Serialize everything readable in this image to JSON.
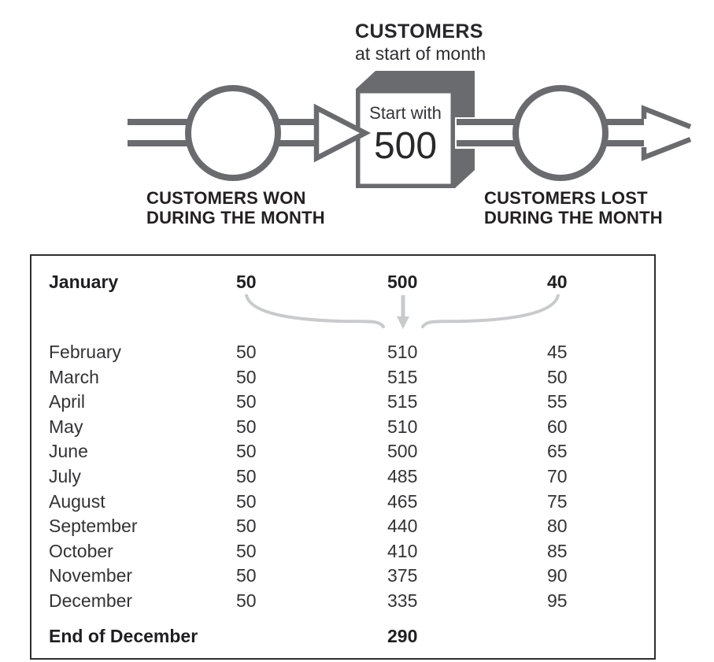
{
  "colors": {
    "diagram_gray": "#6a6b6f",
    "connector_gray": "#c9cacc",
    "text_dark": "#231f20",
    "table_text": "#333336"
  },
  "diagram": {
    "title": "CUSTOMERS",
    "subtitle": "at start of month",
    "stock_label": "Start with",
    "stock_value": "500",
    "inflow_label_line1": "CUSTOMERS WON",
    "inflow_label_line2": "DURING THE MONTH",
    "outflow_label_line1": "CUSTOMERS LOST",
    "outflow_label_line2": "DURING THE MONTH"
  },
  "table": {
    "rows": [
      {
        "month": "January",
        "won": "50",
        "start": "500",
        "lost": "40",
        "bold": true
      },
      {
        "month": "February",
        "won": "50",
        "start": "510",
        "lost": "45"
      },
      {
        "month": "March",
        "won": "50",
        "start": "515",
        "lost": "50"
      },
      {
        "month": "April",
        "won": "50",
        "start": "515",
        "lost": "55"
      },
      {
        "month": "May",
        "won": "50",
        "start": "510",
        "lost": "60"
      },
      {
        "month": "June",
        "won": "50",
        "start": "500",
        "lost": "65"
      },
      {
        "month": "July",
        "won": "50",
        "start": "485",
        "lost": "70"
      },
      {
        "month": "August",
        "won": "50",
        "start": "465",
        "lost": "75"
      },
      {
        "month": "September",
        "won": "50",
        "start": "440",
        "lost": "80"
      },
      {
        "month": "October",
        "won": "50",
        "start": "410",
        "lost": "85"
      },
      {
        "month": "November",
        "won": "50",
        "start": "375",
        "lost": "90"
      },
      {
        "month": "December",
        "won": "50",
        "start": "335",
        "lost": "95"
      }
    ],
    "footer": {
      "label": "End of December",
      "start": "290"
    }
  }
}
